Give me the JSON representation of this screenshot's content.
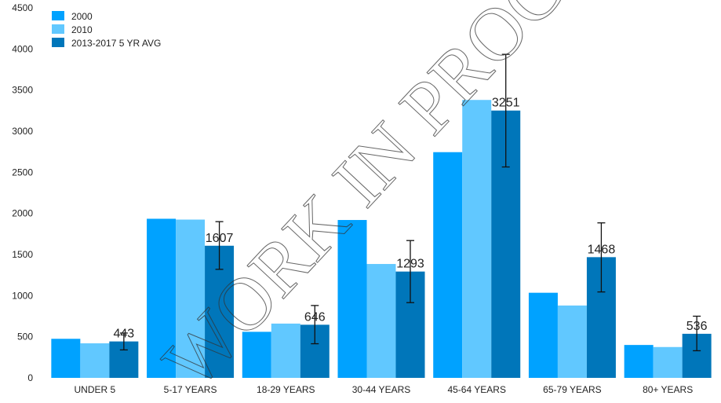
{
  "chart_data": {
    "type": "bar",
    "categories": [
      "UNDER 5",
      "5-17 YEARS",
      "18-29 YEARS",
      "30-44 YEARS",
      "45-64 YEARS",
      "65-79 YEARS",
      "80+ YEARS"
    ],
    "series": [
      {
        "name": "2000",
        "color": "#00a2ff",
        "values": [
          475,
          1935,
          560,
          1920,
          2745,
          1035,
          400
        ]
      },
      {
        "name": "2010",
        "color": "#61c8ff",
        "values": [
          420,
          1925,
          660,
          1385,
          3380,
          880,
          375
        ]
      },
      {
        "name": "2013-2017 5 YR AVG",
        "color": "#0076ba",
        "values": [
          443,
          1607,
          646,
          1293,
          3251,
          1468,
          536
        ],
        "error_low": [
          340,
          1320,
          415,
          915,
          2565,
          1045,
          330
        ],
        "error_high": [
          545,
          1900,
          880,
          1670,
          3935,
          1885,
          750
        ],
        "data_labels": [
          "443",
          "1607",
          "646",
          "1293",
          "3251",
          "1468",
          "536"
        ]
      }
    ],
    "ylim": [
      0,
      4500
    ],
    "yticks": [
      "0",
      "500",
      "1000",
      "1500",
      "2000",
      "2500",
      "3000",
      "3500",
      "4000",
      "4500"
    ],
    "grid": false,
    "legend_position": "top-left",
    "watermark": "WORK IN PROGRESS"
  }
}
